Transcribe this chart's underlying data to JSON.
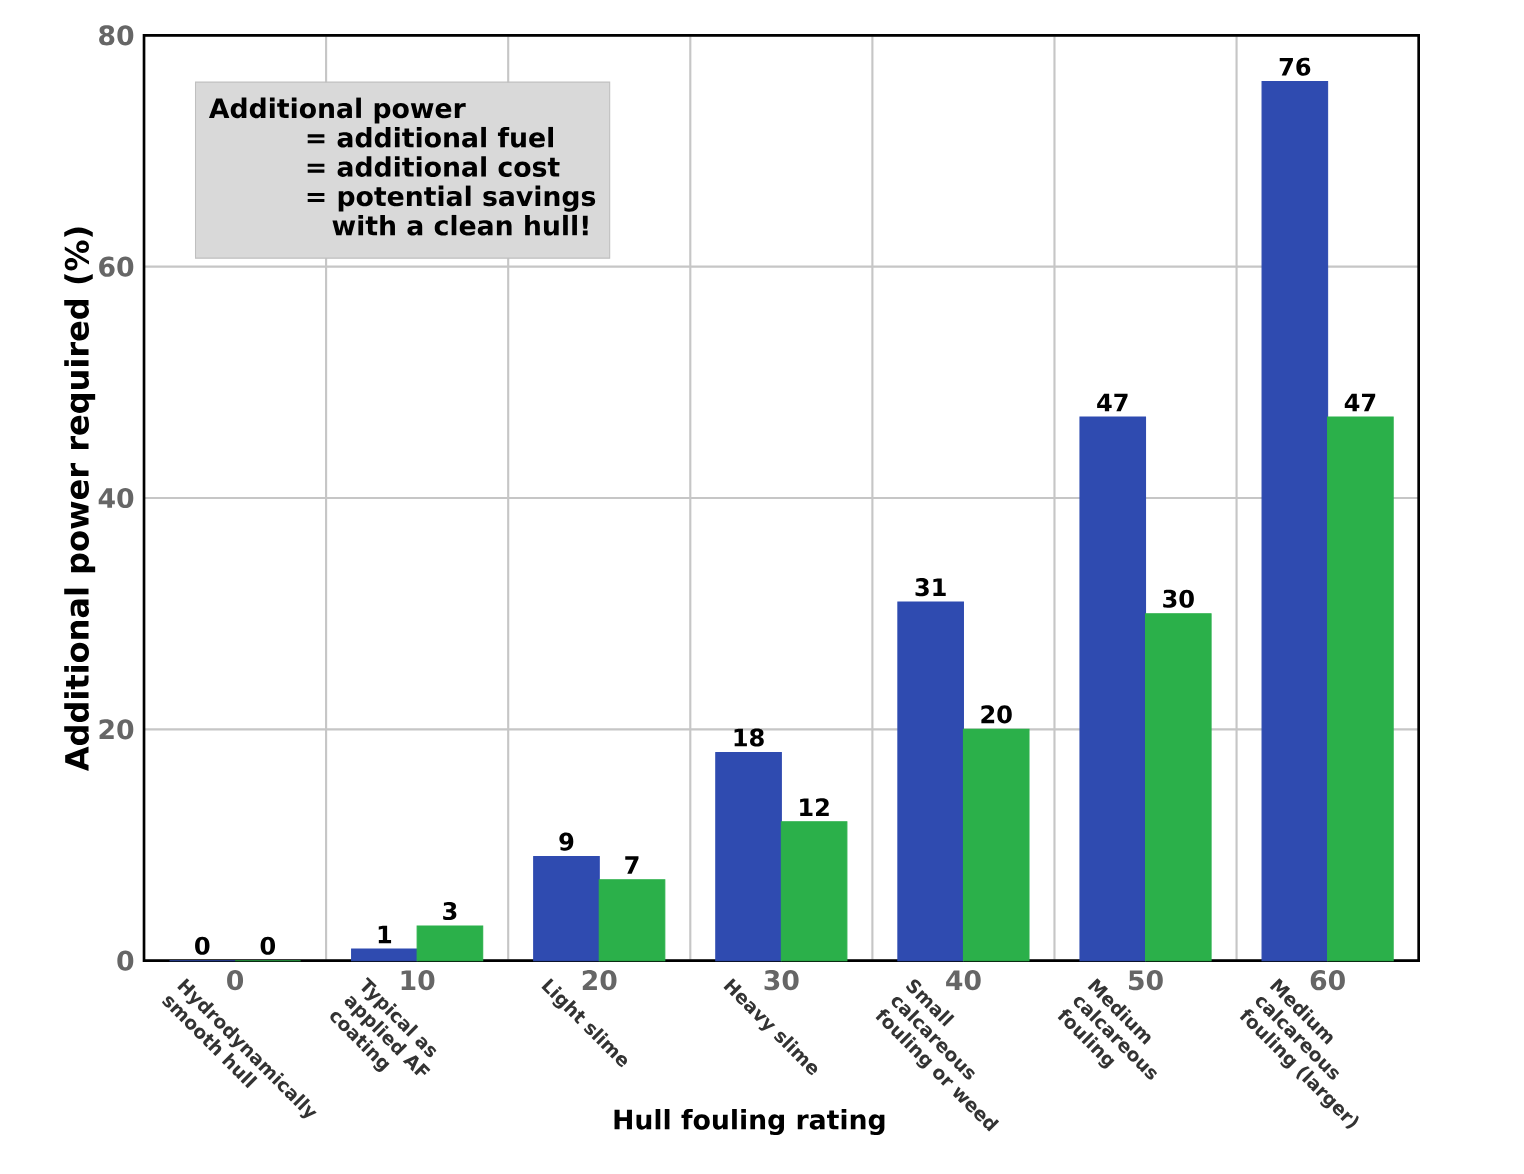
{
  "chart_data": {
    "type": "bar",
    "xlabel": "Hull fouling rating",
    "ylabel": "Additional power required (%)",
    "x": [
      0,
      10,
      20,
      30,
      40,
      50,
      60
    ],
    "series": [
      {
        "color": "#2f4bb0",
        "values": [
          0,
          1,
          9,
          18,
          31,
          47,
          76
        ]
      },
      {
        "color": "#2bb04a",
        "values": [
          0,
          3,
          7,
          12,
          20,
          30,
          47
        ]
      }
    ],
    "xlim": [
      -5,
      65
    ],
    "xticks": [
      0,
      10,
      20,
      30,
      40,
      50,
      60
    ],
    "ylim": [
      0,
      80
    ],
    "yticks": [
      0,
      20,
      40,
      60,
      80
    ],
    "grid": true,
    "data_labels": true,
    "annotations": [
      "Additional power",
      "= additional fuel",
      "= additional cost",
      "= potential savings",
      "with a clean hull!",
      "Hydrodynamically smooth hull",
      "Typical as applied AF coating",
      "Light slime",
      "Heavy slime",
      "Small calcareous fouling or weed",
      "Medium calcareous fouling",
      "Medium calcareous fouling (larger)"
    ]
  }
}
